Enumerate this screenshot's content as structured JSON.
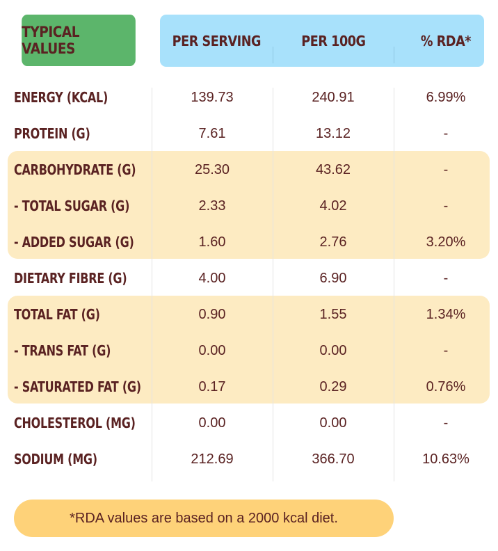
{
  "header": {
    "typical": "TYPICAL VALUES",
    "per_serving": "PER SERVING",
    "per_100g": "PER 100G",
    "rda": "% RDA*"
  },
  "rows": [
    {
      "label": "ENERGY (KCAL)",
      "per_serving": "139.73",
      "per_100g": "240.91",
      "rda": "6.99%"
    },
    {
      "label": "PROTEIN (G)",
      "per_serving": "7.61",
      "per_100g": "13.12",
      "rda": "-"
    },
    {
      "label": "CARBOHYDRATE (G)",
      "per_serving": "25.30",
      "per_100g": "43.62",
      "rda": "-"
    },
    {
      "label": "- TOTAL SUGAR (G)",
      "per_serving": "2.33",
      "per_100g": "4.02",
      "rda": "-"
    },
    {
      "label": "- ADDED SUGAR (G)",
      "per_serving": "1.60",
      "per_100g": "2.76",
      "rda": "3.20%"
    },
    {
      "label": "DIETARY FIBRE (G)",
      "per_serving": "4.00",
      "per_100g": "6.90",
      "rda": "-"
    },
    {
      "label": "TOTAL FAT (G)",
      "per_serving": "0.90",
      "per_100g": "1.55",
      "rda": "1.34%"
    },
    {
      "label": "- TRANS FAT (G)",
      "per_serving": "0.00",
      "per_100g": "0.00",
      "rda": "-"
    },
    {
      "label": "- SATURATED FAT (G)",
      "per_serving": "0.17",
      "per_100g": "0.29",
      "rda": "0.76%"
    },
    {
      "label": "CHOLESTEROL (MG)",
      "per_serving": "0.00",
      "per_100g": "0.00",
      "rda": "-"
    },
    {
      "label": "SODIUM (MG)",
      "per_serving": "212.69",
      "per_100g": "366.70",
      "rda": "10.63%"
    }
  ],
  "footnote": "*RDA values are based on a 2000 kcal diet.",
  "colors": {
    "header_green": "#5cb56b",
    "header_blue": "#a8e1fb",
    "band": "#fdebc2",
    "footnote_bg": "#fed279",
    "text": "#5a2222"
  }
}
